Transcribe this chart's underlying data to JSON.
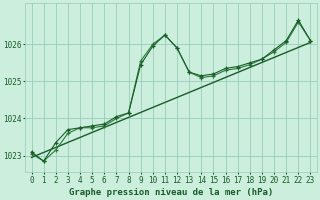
{
  "title": "Graphe pression niveau de la mer (hPa)",
  "bg_color": "#cceedd",
  "grid_color": "#99ccbb",
  "line_color_dark": "#1a5c2a",
  "line_color_med": "#2a7a3a",
  "xlim": [
    -0.5,
    23.5
  ],
  "ylim": [
    1022.55,
    1027.1
  ],
  "yticks": [
    1023,
    1024,
    1025,
    1026
  ],
  "xticks": [
    0,
    1,
    2,
    3,
    4,
    5,
    6,
    7,
    8,
    9,
    10,
    11,
    12,
    13,
    14,
    15,
    16,
    17,
    18,
    19,
    20,
    21,
    22,
    23
  ],
  "series1_x": [
    0,
    1,
    2,
    3,
    4,
    5,
    6,
    7,
    8,
    9,
    10,
    11,
    12,
    13,
    14,
    15,
    16,
    17,
    18,
    19,
    20,
    21,
    22,
    23
  ],
  "series1_y": [
    1023.1,
    1022.85,
    1023.35,
    1023.7,
    1023.75,
    1023.8,
    1023.85,
    1024.05,
    1024.15,
    1025.45,
    1025.95,
    1026.25,
    1025.9,
    1025.25,
    1025.15,
    1025.2,
    1025.35,
    1025.4,
    1025.5,
    1025.6,
    1025.85,
    1026.1,
    1026.65,
    1026.1
  ],
  "series2_x": [
    0,
    1,
    2,
    3,
    4,
    5,
    6,
    7,
    8,
    9,
    10,
    11,
    12,
    13,
    14,
    15,
    16,
    17,
    18,
    19,
    20,
    21,
    22,
    23
  ],
  "series2_y": [
    1023.05,
    1022.85,
    1023.15,
    1023.6,
    1023.75,
    1023.75,
    1023.8,
    1024.0,
    1024.15,
    1025.55,
    1026.0,
    1026.25,
    1025.9,
    1025.25,
    1025.1,
    1025.15,
    1025.3,
    1025.35,
    1025.45,
    1025.6,
    1025.8,
    1026.05,
    1026.6,
    1026.1
  ],
  "trend_x": [
    0,
    23
  ],
  "trend_y": [
    1022.95,
    1026.05
  ],
  "tick_fontsize": 5.5,
  "title_fontsize": 6.5
}
